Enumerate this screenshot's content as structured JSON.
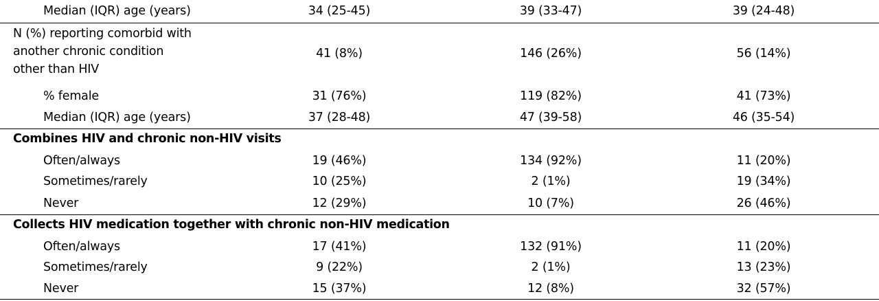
{
  "table": {
    "rows": [
      {
        "kind": "indent",
        "label": "Median (IQR) age (years)",
        "values": [
          "34 (25-45)",
          "39 (33-47)",
          "39 (24-48)"
        ]
      },
      {
        "kind": "multi",
        "label_lines": [
          "N (%) reporting comorbid with",
          "another chronic condition",
          "other than HIV"
        ],
        "values": [
          "41 (8%)",
          "146 (26%)",
          "56 (14%)"
        ]
      },
      {
        "kind": "indent",
        "label": "% female",
        "values": [
          "31 (76%)",
          "119 (82%)",
          "41 (73%)"
        ]
      },
      {
        "kind": "indent",
        "label": "Median (IQR) age (years)",
        "values": [
          "37 (28-48)",
          "47 (39-58)",
          "46 (35-54)"
        ]
      },
      {
        "kind": "section",
        "label": "Combines HIV and chronic non-HIV visits"
      },
      {
        "kind": "indent",
        "label": "Often/always",
        "values": [
          "19 (46%)",
          "134 (92%)",
          "11 (20%)"
        ]
      },
      {
        "kind": "indent",
        "label": "Sometimes/rarely",
        "values": [
          "10 (25%)",
          "2 (1%)",
          "19 (34%)"
        ]
      },
      {
        "kind": "indent",
        "label": "Never",
        "values": [
          "12 (29%)",
          "10 (7%)",
          "26 (46%)"
        ]
      },
      {
        "kind": "section",
        "label": "Collects HIV medication together with chronic non-HIV medication"
      },
      {
        "kind": "indent",
        "label": "Often/always",
        "values": [
          "17 (41%)",
          "132 (91%)",
          "11 (20%)"
        ]
      },
      {
        "kind": "indent",
        "label": "Sometimes/rarely",
        "values": [
          "9 (22%)",
          "2 (1%)",
          "13 (23%)"
        ]
      },
      {
        "kind": "indent",
        "label": "Never",
        "values": [
          "15 (37%)",
          "12 (8%)",
          "32 (57%)"
        ]
      }
    ]
  },
  "colors": {
    "text": "#000000",
    "rule": "#000000",
    "background": "#ffffff"
  }
}
